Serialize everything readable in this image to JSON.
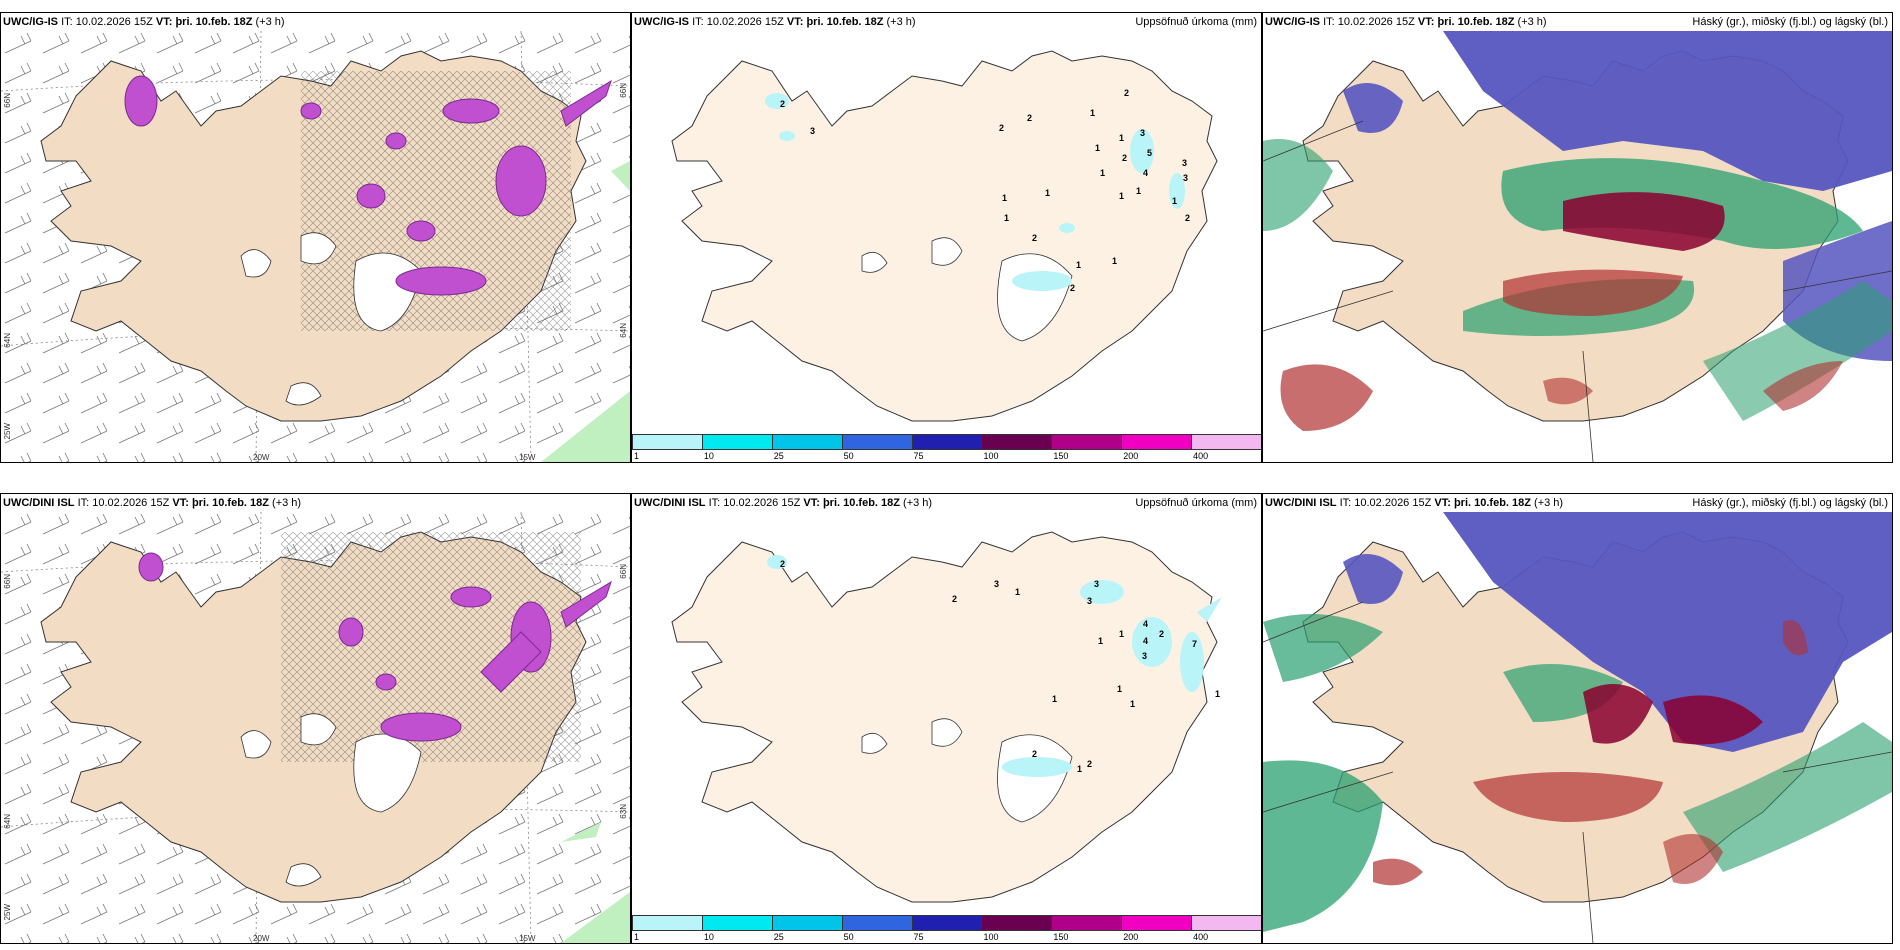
{
  "rows": [
    {
      "model": "UWC/IG-IS",
      "it_label": "IT:",
      "it_value": "10.02.2026 15Z",
      "vt_label": "VT:",
      "vt_value": "þri. 10.feb. 18Z",
      "lead": "(+3 h)"
    },
    {
      "model": "UWC/DINI ISL",
      "it_label": "IT:",
      "it_value": "10.02.2026 15Z",
      "vt_label": "VT:",
      "vt_value": "þri. 10.feb. 18Z",
      "lead": "(+3 h)"
    }
  ],
  "precip_title": "Uppsöfnuð úrkoma (mm)",
  "cloud_title": "Háský (gr.), miðský (fj.bl.) og lágský (bl.)",
  "lat_labels": [
    "66N",
    "64N",
    "63N"
  ],
  "lon_labels": [
    "25W",
    "20W",
    "15W"
  ],
  "legend": {
    "ticks": [
      "1",
      "10",
      "25",
      "50",
      "75",
      "100",
      "150",
      "200",
      "400"
    ],
    "colors": [
      "#b8f4f8",
      "#00e8f0",
      "#00c4e8",
      "#2f66e0",
      "#2020b0",
      "#6a0050",
      "#b0008a",
      "#f000c0",
      "#f4b8f0"
    ]
  },
  "precip_top_numbers": [
    "2",
    "3",
    "2",
    "2",
    "1",
    "2",
    "1",
    "1",
    "3",
    "5",
    "1",
    "2",
    "4",
    "3",
    "1",
    "1",
    "1",
    "3",
    "1",
    "1",
    "2",
    "1",
    "2",
    "1",
    "2",
    "1"
  ],
  "precip_bottom_numbers": [
    "2",
    "3",
    "2",
    "1",
    "3",
    "3",
    "4",
    "2",
    "4",
    "7",
    "1",
    "1",
    "3",
    "1",
    "1",
    "1",
    "2",
    "1",
    "2",
    "1"
  ],
  "colors": {
    "land": "#f2dcc4",
    "land_precip": "#fdf1e4",
    "pink": "#c050d0",
    "pink_dark": "#7a2a90",
    "cloud_high": "#5656c0",
    "cloud_mid": "#2aa070",
    "cloud_low": "#b03030",
    "green_light": "#c0f0c0"
  }
}
